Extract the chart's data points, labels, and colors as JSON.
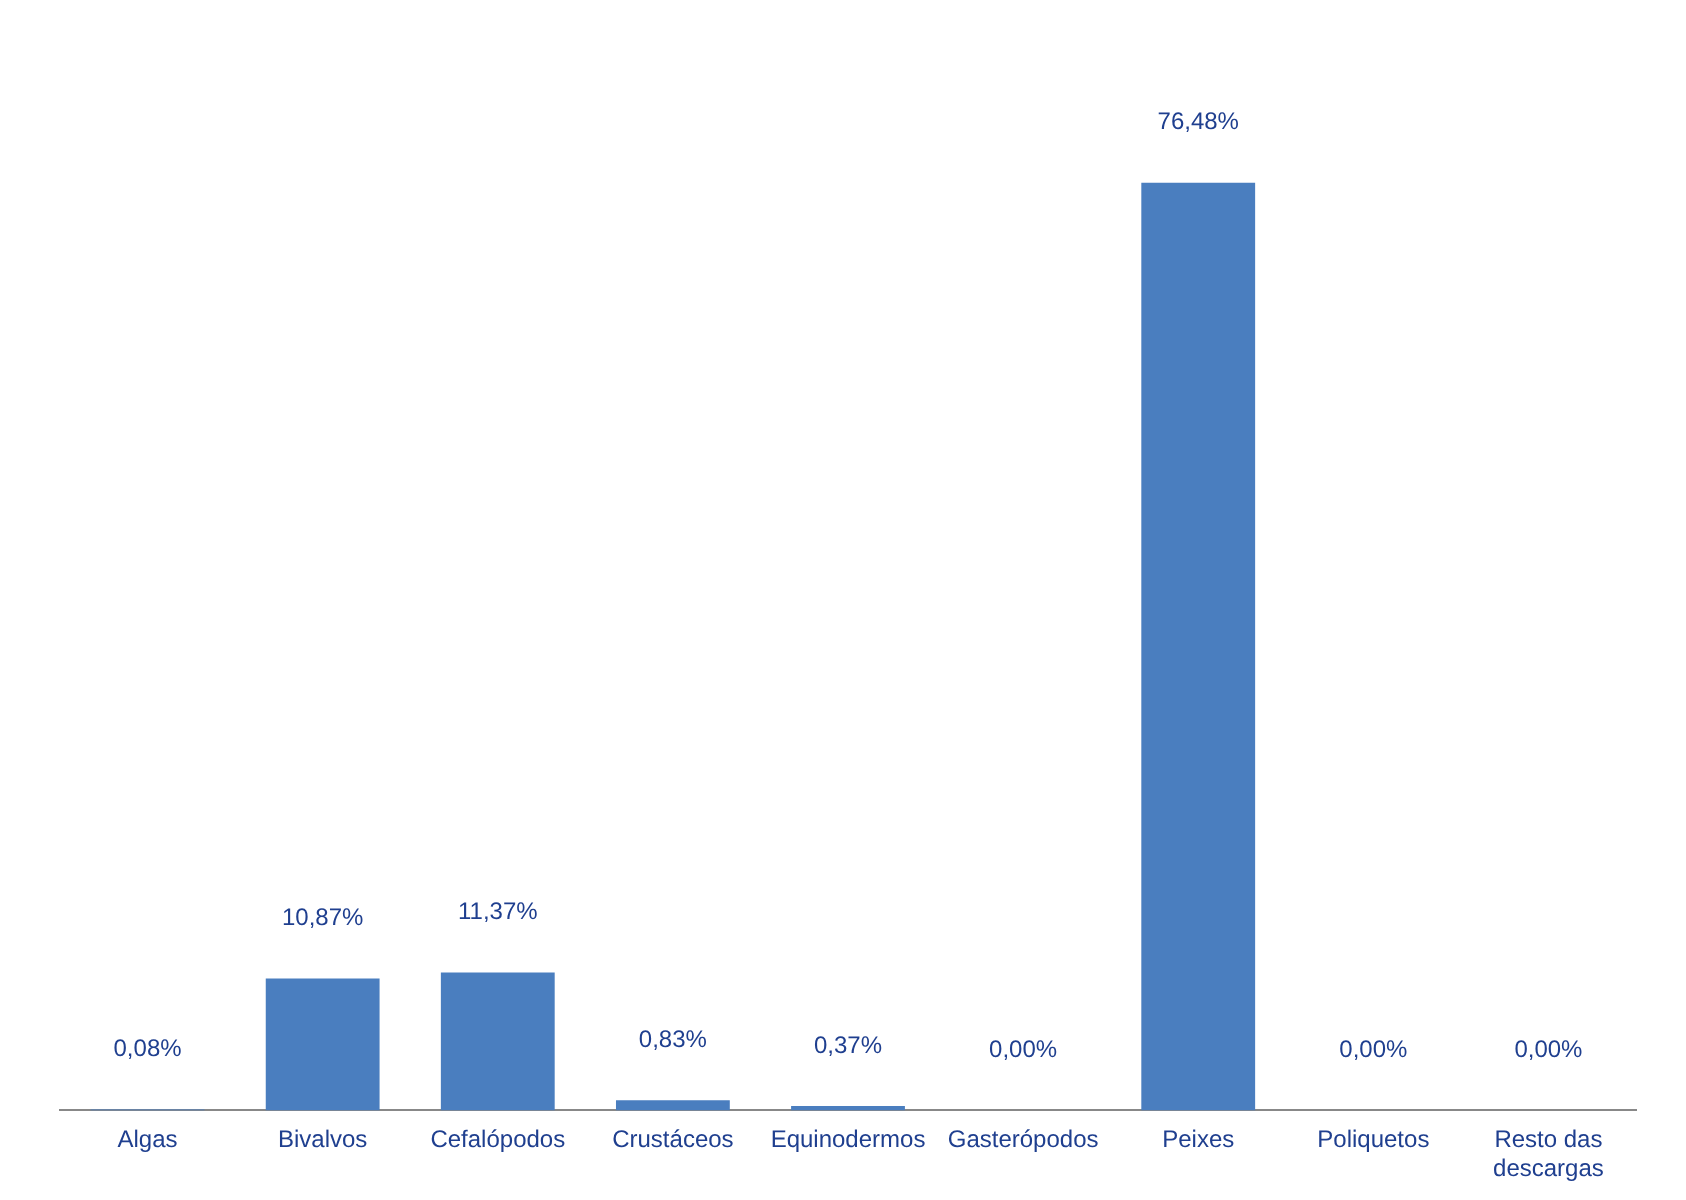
{
  "chart_data": {
    "type": "bar",
    "categories": [
      "Algas",
      "Bivalvos",
      "Cefalópodos",
      "Crustáceos",
      "Equinodermos",
      "Gasterópodos",
      "Peixes",
      "Poliquetos",
      "Resto das descargas"
    ],
    "values": [
      0.08,
      10.87,
      11.37,
      0.83,
      0.37,
      0.0,
      76.48,
      0.0,
      0.0
    ],
    "value_labels": [
      "0,08%",
      "10,87%",
      "11,37%",
      "0,83%",
      "0,37%",
      "0,00%",
      "76,48%",
      "0,00%",
      "0,00%"
    ],
    "color": "#4a7ebf",
    "grid": false,
    "legend": false
  }
}
